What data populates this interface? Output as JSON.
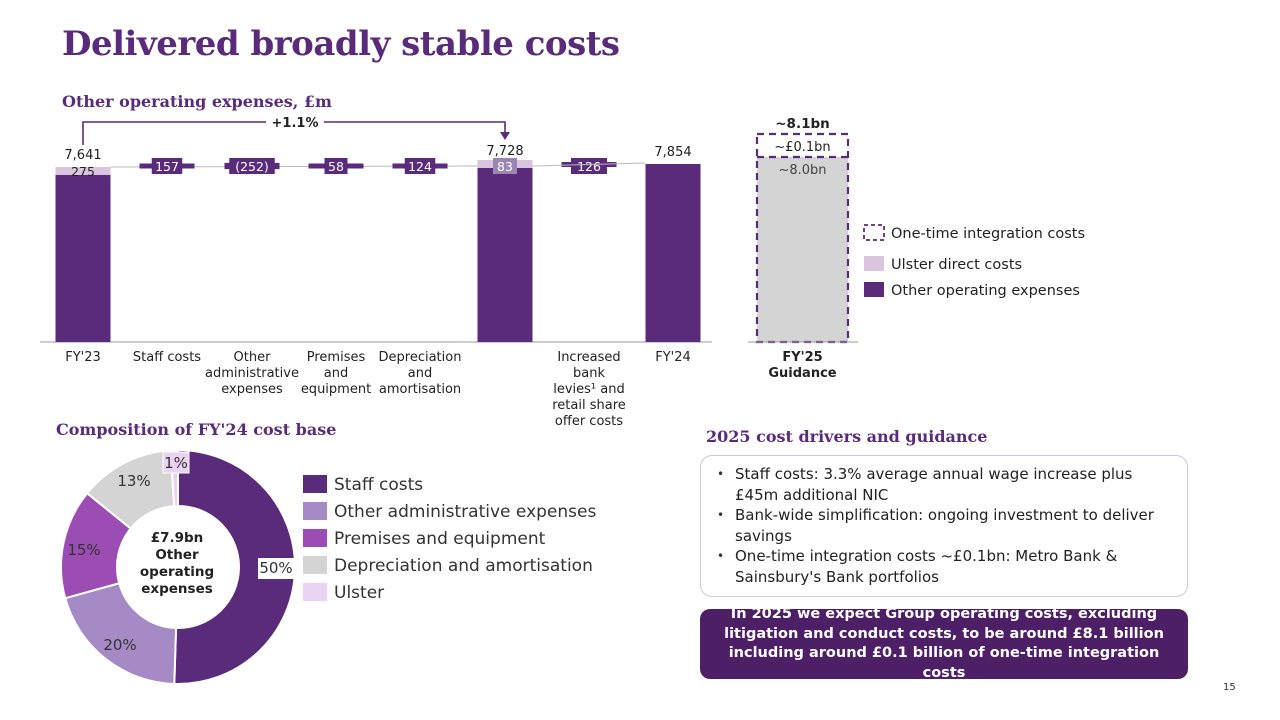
{
  "title": "Delivered broadly stable costs",
  "page_number": "15",
  "waterfall": {
    "title": "Other operating expenses, £m",
    "change_label": "+1.1%",
    "fy23": {
      "label": "FY'23",
      "total": "7,641",
      "ulster": "275"
    },
    "fy24_mid": {
      "total": "7,728",
      "ulster": "83"
    },
    "fy24": {
      "label": "FY'24",
      "total": "7,854"
    },
    "steps": [
      {
        "value": "157",
        "label": [
          "Staff costs"
        ]
      },
      {
        "value": "(252)",
        "label": [
          "Other",
          "administrative",
          "expenses"
        ]
      },
      {
        "value": "58",
        "label": [
          "Premises",
          "and",
          "equipment"
        ]
      },
      {
        "value": "124",
        "label": [
          "Depreciation",
          "and",
          "amortisation"
        ]
      },
      {
        "value": "126",
        "label": [
          "Increased",
          "bank",
          "levies¹ and",
          "retail share",
          "offer costs"
        ]
      }
    ]
  },
  "guidance": {
    "top_label": "~8.1bn",
    "integration_label": "~£0.1bn",
    "base_label": "~8.0bn",
    "x_label": [
      "FY'25",
      "Guidance"
    ]
  },
  "waterfall_legend": [
    {
      "label": "One-time integration costs",
      "style": "dashed",
      "color": "#5a2a7b"
    },
    {
      "label": "Ulster direct costs",
      "style": "fill",
      "color": "#d9c6dd"
    },
    {
      "label": "Other operating expenses",
      "style": "fill",
      "color": "#5a2a7b"
    }
  ],
  "pie": {
    "title": "Composition of FY'24 cost base",
    "center_label": [
      "£7.9bn",
      "Other",
      "operating",
      "expenses"
    ]
  },
  "chart_data": [
    {
      "type": "bar",
      "subtype": "waterfall",
      "title": "Other operating expenses, £m",
      "categories": [
        "FY'23",
        "Staff costs",
        "Other administrative expenses",
        "Premises and equipment",
        "Depreciation and amortisation",
        "",
        "Increased bank levies and retail share offer costs",
        "FY'24"
      ],
      "series": [
        {
          "name": "Other operating expenses",
          "values": [
            7366,
            157,
            -252,
            58,
            124,
            7645,
            126,
            7854
          ]
        },
        {
          "name": "Ulster direct costs",
          "values": [
            275,
            null,
            null,
            null,
            null,
            83,
            null,
            null
          ]
        }
      ],
      "totals": [
        7641,
        null,
        null,
        null,
        null,
        7728,
        null,
        7854
      ],
      "annotations": [
        "+1.1%"
      ],
      "ylim": [
        0,
        8000
      ]
    },
    {
      "type": "bar",
      "title": "FY'25 Guidance",
      "categories": [
        "FY'25 Guidance"
      ],
      "series": [
        {
          "name": "Other operating expenses",
          "values": [
            8.0
          ]
        },
        {
          "name": "One-time integration costs",
          "values": [
            0.1
          ]
        }
      ],
      "total": 8.1,
      "unit": "£bn"
    },
    {
      "type": "pie",
      "title": "Composition of FY'24 cost base",
      "labels": [
        "Staff costs",
        "Other administrative expenses",
        "Premises and equipment",
        "Depreciation and amortisation",
        "Ulster"
      ],
      "values": [
        50,
        20,
        15,
        13,
        1
      ],
      "value_labels": [
        "50%",
        "20%",
        "15%",
        "13%",
        "1%"
      ],
      "colors": [
        "#5a2a7b",
        "#a58ac6",
        "#9c4db3",
        "#d4d4d4",
        "#e9d2f2"
      ],
      "legend": "right"
    }
  ],
  "drivers": {
    "title": "2025 cost drivers and guidance",
    "items": [
      "Staff costs: 3.3% average annual wage increase plus £45m additional NIC",
      "Bank-wide simplification: ongoing investment to deliver savings",
      "One-time integration costs ~£0.1bn: Metro Bank & Sainsbury's Bank portfolios"
    ],
    "callout": "In 2025 we expect Group operating costs, excluding litigation and conduct costs, to be around £8.1 billion including around £0.1 billion of one-time integration costs"
  }
}
